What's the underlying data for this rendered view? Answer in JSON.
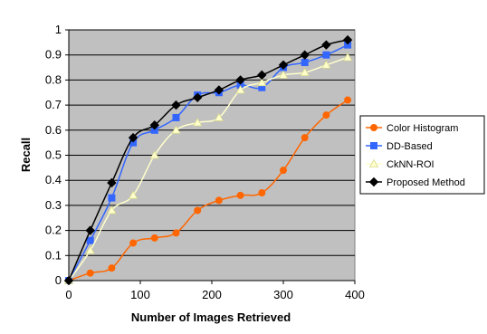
{
  "chart_data": {
    "type": "line",
    "title": "",
    "xlabel": "Number of Images Retrieved",
    "ylabel": "Recall",
    "xlim": [
      0,
      400
    ],
    "ylim": [
      0,
      1
    ],
    "xticks": [
      "0",
      "100",
      "200",
      "300",
      "400"
    ],
    "yticks": [
      "0",
      "0.1",
      "0.2",
      "0.3",
      "0.4",
      "0.5",
      "0.6",
      "0.7",
      "0.8",
      "0.9",
      "1"
    ],
    "grid": true,
    "plot_background": "#c0c0c0",
    "legend_position": "right",
    "x": [
      0,
      30,
      60,
      90,
      120,
      150,
      180,
      210,
      240,
      270,
      300,
      330,
      360,
      390
    ],
    "series": [
      {
        "name": "Color Histogram",
        "color": "#ff6600",
        "marker": "circle",
        "values": [
          0.0,
          0.03,
          0.05,
          0.15,
          0.17,
          0.19,
          0.28,
          0.32,
          0.34,
          0.35,
          0.44,
          0.57,
          0.66,
          0.72
        ]
      },
      {
        "name": "DD-Based",
        "color": "#3366ff",
        "marker": "square",
        "values": [
          0.0,
          0.16,
          0.33,
          0.55,
          0.6,
          0.65,
          0.74,
          0.75,
          0.78,
          0.77,
          0.85,
          0.87,
          0.9,
          0.94
        ]
      },
      {
        "name": "CkNN-ROI",
        "color": "#ffffcc",
        "marker": "triangle",
        "values": [
          0.0,
          0.12,
          0.28,
          0.34,
          0.5,
          0.6,
          0.63,
          0.65,
          0.76,
          0.79,
          0.82,
          0.83,
          0.86,
          0.89
        ]
      },
      {
        "name": "Proposed Method",
        "color": "#000000",
        "marker": "diamond",
        "values": [
          0.0,
          0.2,
          0.39,
          0.57,
          0.62,
          0.7,
          0.73,
          0.76,
          0.8,
          0.82,
          0.86,
          0.9,
          0.94,
          0.96
        ]
      }
    ]
  }
}
